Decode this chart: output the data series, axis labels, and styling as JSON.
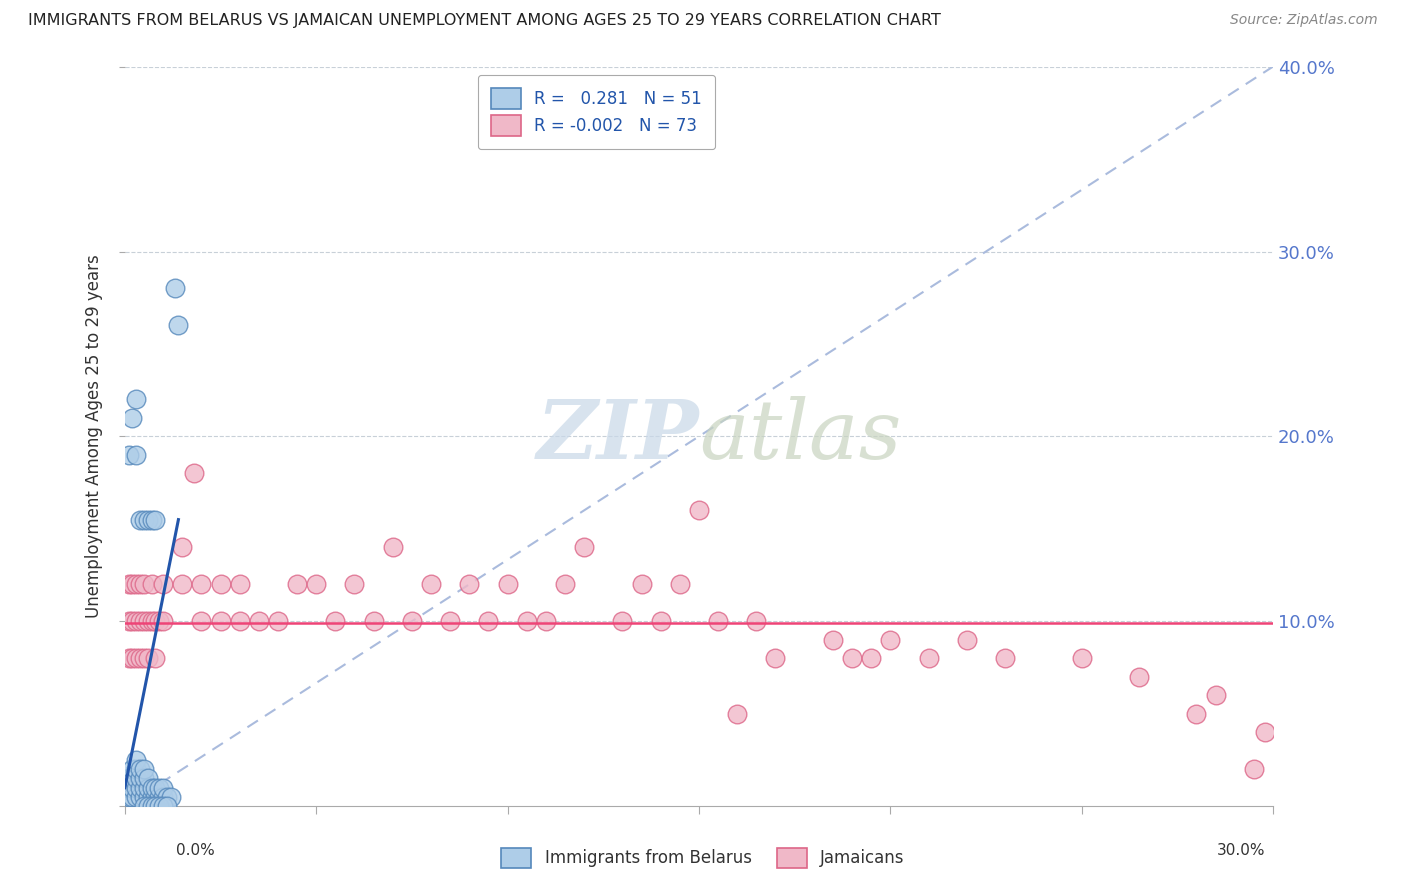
{
  "title": "IMMIGRANTS FROM BELARUS VS JAMAICAN UNEMPLOYMENT AMONG AGES 25 TO 29 YEARS CORRELATION CHART",
  "source": "Source: ZipAtlas.com",
  "ylabel_label": "Unemployment Among Ages 25 to 29 years",
  "xlim": [
    0.0,
    0.3
  ],
  "ylim": [
    0.0,
    0.4
  ],
  "blue_R": "0.281",
  "blue_N": "51",
  "pink_R": "-0.002",
  "pink_N": "73",
  "legend_label_blue": "Immigrants from Belarus",
  "legend_label_pink": "Jamaicans",
  "blue_color": "#aecde8",
  "pink_color": "#f0b8c8",
  "blue_edge": "#5588bb",
  "pink_edge": "#dd6688",
  "watermark_zip": "ZIP",
  "watermark_atlas": "atlas",
  "bg_color": "#ffffff",
  "grid_color": "#c8d0d8",
  "ytick_color": "#5577cc",
  "trend_blue_color": "#2255aa",
  "trend_pink_color": "#ee4477",
  "diag_color": "#aabbdd",
  "blue_points_x": [
    0.001,
    0.001,
    0.001,
    0.002,
    0.002,
    0.002,
    0.002,
    0.003,
    0.003,
    0.003,
    0.003,
    0.003,
    0.004,
    0.004,
    0.004,
    0.004,
    0.005,
    0.005,
    0.005,
    0.005,
    0.006,
    0.006,
    0.006,
    0.007,
    0.007,
    0.008,
    0.008,
    0.009,
    0.009,
    0.01,
    0.01,
    0.011,
    0.012,
    0.013,
    0.014,
    0.001,
    0.002,
    0.003,
    0.003,
    0.004,
    0.005,
    0.006,
    0.007,
    0.008,
    0.005,
    0.006,
    0.007,
    0.008,
    0.009,
    0.01,
    0.011
  ],
  "blue_points_y": [
    0.005,
    0.01,
    0.015,
    0.005,
    0.01,
    0.015,
    0.02,
    0.005,
    0.01,
    0.015,
    0.02,
    0.025,
    0.005,
    0.01,
    0.015,
    0.02,
    0.005,
    0.01,
    0.015,
    0.02,
    0.005,
    0.01,
    0.015,
    0.005,
    0.01,
    0.005,
    0.01,
    0.005,
    0.01,
    0.005,
    0.01,
    0.005,
    0.005,
    0.28,
    0.26,
    0.19,
    0.21,
    0.19,
    0.22,
    0.155,
    0.155,
    0.155,
    0.155,
    0.155,
    0.0,
    0.0,
    0.0,
    0.0,
    0.0,
    0.0,
    0.0
  ],
  "pink_points_x": [
    0.001,
    0.001,
    0.001,
    0.002,
    0.002,
    0.002,
    0.003,
    0.003,
    0.003,
    0.004,
    0.004,
    0.004,
    0.005,
    0.005,
    0.005,
    0.006,
    0.006,
    0.007,
    0.007,
    0.008,
    0.008,
    0.009,
    0.01,
    0.01,
    0.015,
    0.015,
    0.018,
    0.02,
    0.02,
    0.025,
    0.025,
    0.03,
    0.03,
    0.035,
    0.04,
    0.045,
    0.05,
    0.055,
    0.06,
    0.065,
    0.07,
    0.075,
    0.08,
    0.085,
    0.09,
    0.095,
    0.1,
    0.105,
    0.11,
    0.115,
    0.12,
    0.13,
    0.135,
    0.14,
    0.145,
    0.15,
    0.155,
    0.16,
    0.165,
    0.17,
    0.185,
    0.19,
    0.195,
    0.2,
    0.21,
    0.22,
    0.23,
    0.25,
    0.265,
    0.28,
    0.285,
    0.295,
    0.298
  ],
  "pink_points_y": [
    0.1,
    0.12,
    0.08,
    0.1,
    0.12,
    0.08,
    0.1,
    0.12,
    0.08,
    0.1,
    0.12,
    0.08,
    0.1,
    0.12,
    0.08,
    0.1,
    0.08,
    0.1,
    0.12,
    0.1,
    0.08,
    0.1,
    0.1,
    0.12,
    0.12,
    0.14,
    0.18,
    0.1,
    0.12,
    0.1,
    0.12,
    0.1,
    0.12,
    0.1,
    0.1,
    0.12,
    0.12,
    0.1,
    0.12,
    0.1,
    0.14,
    0.1,
    0.12,
    0.1,
    0.12,
    0.1,
    0.12,
    0.1,
    0.1,
    0.12,
    0.14,
    0.1,
    0.12,
    0.1,
    0.12,
    0.16,
    0.1,
    0.05,
    0.1,
    0.08,
    0.09,
    0.08,
    0.08,
    0.09,
    0.08,
    0.09,
    0.08,
    0.08,
    0.07,
    0.05,
    0.06,
    0.02,
    0.04
  ]
}
